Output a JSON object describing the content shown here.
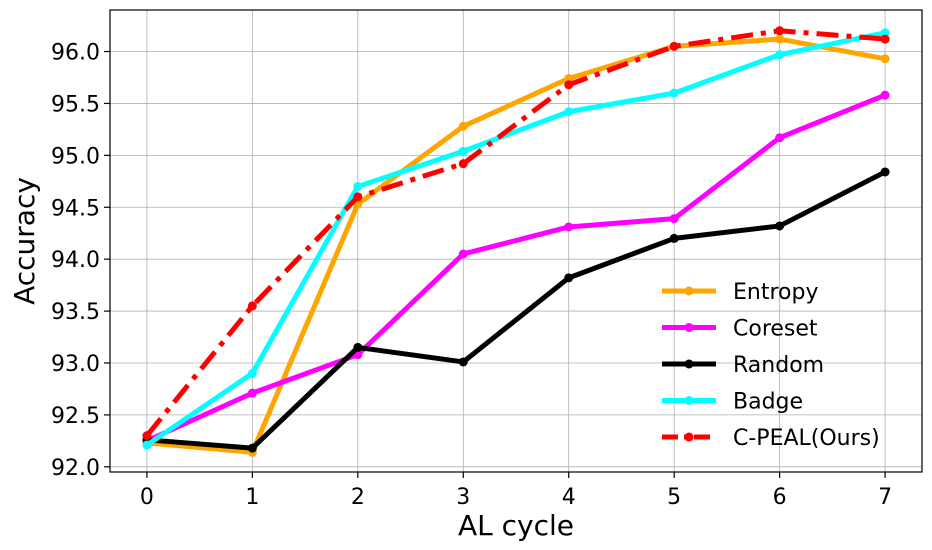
{
  "chart_data": {
    "type": "line",
    "title": "",
    "xlabel": "AL cycle",
    "ylabel": "Accuracy",
    "x": [
      0,
      1,
      2,
      3,
      4,
      5,
      6,
      7
    ],
    "xlim": [
      -0.35,
      7.35
    ],
    "ylim": [
      91.95,
      96.4
    ],
    "xticks": [
      0,
      1,
      2,
      3,
      4,
      5,
      6,
      7
    ],
    "yticks": [
      92.0,
      92.5,
      93.0,
      93.5,
      94.0,
      94.5,
      95.0,
      95.5,
      96.0
    ],
    "xtick_labels": [
      "0",
      "1",
      "2",
      "3",
      "4",
      "5",
      "6",
      "7"
    ],
    "ytick_labels": [
      "92.0",
      "92.5",
      "93.0",
      "93.5",
      "94.0",
      "94.5",
      "95.0",
      "95.5",
      "96.0"
    ],
    "grid": true,
    "legend_position": "lower-right",
    "series": [
      {
        "name": "Entropy",
        "color": "#ffa500",
        "dash": "solid",
        "values": [
          92.23,
          92.14,
          94.53,
          95.28,
          95.74,
          96.05,
          96.12,
          95.93
        ]
      },
      {
        "name": "Coreset",
        "color": "#ff00ff",
        "dash": "solid",
        "values": [
          92.25,
          92.71,
          93.08,
          94.05,
          94.31,
          94.39,
          95.17,
          95.58
        ]
      },
      {
        "name": "Random",
        "color": "#000000",
        "dash": "solid",
        "values": [
          92.26,
          92.18,
          93.15,
          93.01,
          93.82,
          94.2,
          94.32,
          94.84
        ]
      },
      {
        "name": "Badge",
        "color": "#00ffff",
        "dash": "solid",
        "values": [
          92.21,
          92.9,
          94.7,
          95.04,
          95.42,
          95.6,
          95.97,
          96.18
        ]
      },
      {
        "name": "C-PEAL(Ours)",
        "color": "#ff0000",
        "dash": "dashdot",
        "values": [
          92.3,
          93.55,
          94.6,
          94.92,
          95.68,
          96.05,
          96.2,
          96.12
        ]
      }
    ]
  }
}
